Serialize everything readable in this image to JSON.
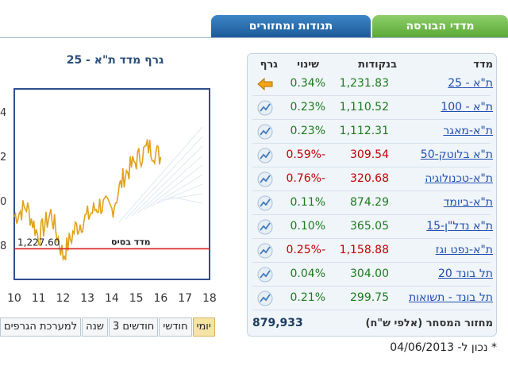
{
  "tabs": [
    {
      "label": "מדדי הבורסה",
      "active": true
    },
    {
      "label": "תנודות ומחזורים",
      "active": false
    }
  ],
  "chart": {
    "title": "גרף מדד ת\"א - 25",
    "base_label": "מדד בסיס",
    "base_value": "1,227.60",
    "x_ticks": [
      "10",
      "11",
      "12",
      "13",
      "14",
      "15",
      "16",
      "17",
      "18"
    ],
    "y_edge_labels": [
      "4",
      "2",
      "0",
      "8"
    ],
    "line_color": "#e0a21a",
    "base_color": "#e02020"
  },
  "chart_data": {
    "type": "line",
    "x": [
      10,
      10.5,
      11,
      11.5,
      12,
      12.5,
      13,
      13.5,
      14,
      14.5,
      15,
      15.5,
      16
    ],
    "values": [
      1229.5,
      1230.1,
      1228.3,
      1229.7,
      1227.2,
      1228.8,
      1229.5,
      1230.2,
      1229.9,
      1231.9,
      1232.8,
      1233.6,
      1233.0
    ],
    "base": 1227.6,
    "xlim": [
      10,
      18
    ]
  },
  "range_buttons": [
    "יומי",
    "חודשי",
    "3 חודשים",
    "שנה",
    "למערכת הגרפים"
  ],
  "table": {
    "headers": {
      "index": "מדד",
      "points": "בנקודות",
      "change": "שינוי",
      "chart": "גרף"
    },
    "rows": [
      {
        "name": "ת\"א - 25",
        "value": "1,231.83",
        "change": "0.34%",
        "dir": "pos",
        "icon": "arrow-icon"
      },
      {
        "name": "ת\"א - 100",
        "value": "1,110.52",
        "change": "0.23%",
        "dir": "pos",
        "icon": "chart-icon"
      },
      {
        "name": "ת\"א-מאגר",
        "value": "1,112.31",
        "change": "0.23%",
        "dir": "pos",
        "icon": "chart-icon"
      },
      {
        "name": "ת\"א בלוטק-50",
        "value": "309.54",
        "change": "-0.59%",
        "dir": "neg",
        "icon": "chart-icon"
      },
      {
        "name": "ת\"א-טכנולוגיה",
        "value": "320.68",
        "change": "-0.76%",
        "dir": "neg",
        "icon": "chart-icon"
      },
      {
        "name": "ת\"א-ביומד",
        "value": "874.29",
        "change": "0.11%",
        "dir": "pos",
        "icon": "chart-icon"
      },
      {
        "name": "ת\"א נדל\"ן-15",
        "value": "365.05",
        "change": "0.10%",
        "dir": "pos",
        "icon": "chart-icon"
      },
      {
        "name": "ת\"א-נפט וגז",
        "value": "1,158.88",
        "change": "-0.25%",
        "dir": "neg",
        "icon": "chart-icon"
      },
      {
        "name": "תל בונד 20",
        "value": "304.00",
        "change": "0.04%",
        "dir": "pos",
        "icon": "chart-icon"
      },
      {
        "name": "תל בונד - תשואות",
        "value": "299.75",
        "change": "0.21%",
        "dir": "pos",
        "icon": "chart-icon"
      }
    ],
    "turnover_label": "מחזור המסחר (אלפי ש\"ח)",
    "turnover_value": "879,933"
  },
  "as_of": "* נכון ל- 04/06/2013"
}
